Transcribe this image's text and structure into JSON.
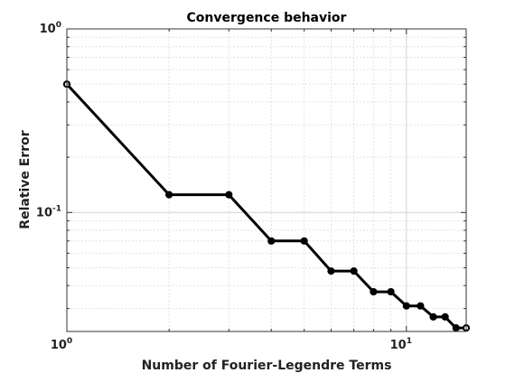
{
  "chart_data": {
    "type": "line",
    "title": "Convergence behavior",
    "xlabel": "Number of Fourier-Legendre Terms",
    "ylabel": "Relative Error",
    "xscale": "log",
    "yscale": "log",
    "xlim": [
      1,
      15
    ],
    "ylim": [
      0.0225,
      1
    ],
    "grid": true,
    "minor_grid": true,
    "xticks": [
      {
        "base": "10",
        "exp": "0"
      },
      {
        "base": "10",
        "exp": "1"
      }
    ],
    "yticks": [
      {
        "base": "10",
        "exp": "0"
      },
      {
        "base": "10",
        "exp": "-1"
      }
    ],
    "series": [
      {
        "color": "#000000",
        "marker": "circle",
        "x": [
          1,
          2,
          3,
          4,
          5,
          6,
          7,
          8,
          9,
          10,
          11,
          12,
          13,
          14,
          15
        ],
        "y": [
          0.5,
          0.125,
          0.125,
          0.07,
          0.07,
          0.048,
          0.048,
          0.037,
          0.037,
          0.031,
          0.031,
          0.027,
          0.027,
          0.0235,
          0.0235
        ]
      }
    ]
  }
}
